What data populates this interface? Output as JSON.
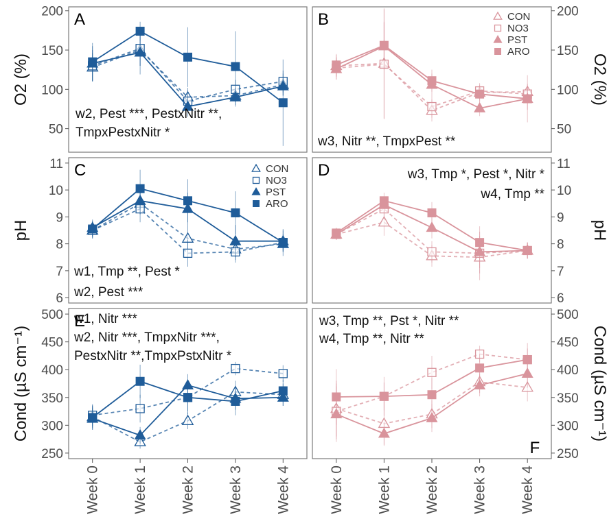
{
  "colors": {
    "blue": "#1f5c99",
    "pink": "#d9949c",
    "frame": "#7a7a7a"
  },
  "chart_data": [
    {
      "panel": "A",
      "type": "line",
      "ylabel": "O2 (%)",
      "axis_side": "left",
      "yticks": [
        50,
        100,
        150,
        200
      ],
      "ylim": [
        20,
        205
      ],
      "categories": [
        "Week 0",
        "Week 1",
        "Week 2",
        "Week 3",
        "Week 4"
      ],
      "annotations": [
        "w2, Pest ***, PestxNitr **,",
        "TmpxPestxNitr *"
      ],
      "legend": false,
      "series": [
        {
          "name": "CON",
          "values": [
            128,
            150,
            90,
            92,
            106
          ],
          "err": [
            18,
            20,
            12,
            12,
            14
          ]
        },
        {
          "name": "NO3",
          "values": [
            130,
            152,
            85,
            100,
            110
          ],
          "err": [
            20,
            22,
            14,
            12,
            14
          ]
        },
        {
          "name": "PST",
          "values": [
            133,
            147,
            78,
            90,
            104
          ],
          "err": [
            22,
            28,
            13,
            12,
            12
          ]
        },
        {
          "name": "ARO",
          "values": [
            135,
            174,
            141,
            129,
            83
          ],
          "err": [
            24,
            12,
            38,
            45,
            55
          ]
        }
      ]
    },
    {
      "panel": "B",
      "type": "line",
      "ylabel": "O2 (%)",
      "axis_side": "right",
      "yticks": [
        50,
        100,
        150,
        200
      ],
      "ylim": [
        20,
        205
      ],
      "categories": [
        "Week 0",
        "Week 1",
        "Week 2",
        "Week 3",
        "Week 4"
      ],
      "annotations": [
        "w3, Nitr **, TmpxPest **"
      ],
      "legend": true,
      "series": [
        {
          "name": "CON",
          "values": [
            130,
            133,
            73,
            96,
            97
          ],
          "err": [
            14,
            70,
            14,
            10,
            10
          ]
        },
        {
          "name": "NO3",
          "values": [
            127,
            132,
            78,
            98,
            94
          ],
          "err": [
            14,
            70,
            14,
            10,
            10
          ]
        },
        {
          "name": "PST",
          "values": [
            126,
            155,
            106,
            76,
            88
          ],
          "err": [
            14,
            30,
            14,
            10,
            14
          ]
        },
        {
          "name": "ARO",
          "values": [
            131,
            156,
            111,
            94,
            88
          ],
          "err": [
            14,
            30,
            14,
            10,
            30
          ]
        }
      ]
    },
    {
      "panel": "C",
      "type": "line",
      "ylabel": "pH",
      "axis_side": "left",
      "yticks": [
        6,
        7,
        8,
        9,
        10,
        11
      ],
      "ylim": [
        5.8,
        11.2
      ],
      "categories": [
        "Week 0",
        "Week 1",
        "Week 2",
        "Week 3",
        "Week 4"
      ],
      "annotations": [
        "w1, Tmp **, Pest *",
        "w2, Pest ***"
      ],
      "legend": true,
      "series": [
        {
          "name": "CON",
          "values": [
            8.5,
            9.5,
            8.2,
            7.8,
            8.0
          ],
          "err": [
            0.3,
            0.4,
            0.5,
            0.4,
            0.3
          ]
        },
        {
          "name": "NO3",
          "values": [
            8.5,
            9.3,
            7.65,
            7.7,
            8.05
          ],
          "err": [
            0.3,
            0.5,
            0.5,
            0.4,
            0.3
          ]
        },
        {
          "name": "PST",
          "values": [
            8.6,
            9.6,
            9.3,
            8.1,
            8.1
          ],
          "err": [
            0.3,
            0.5,
            0.6,
            0.6,
            0.4
          ]
        },
        {
          "name": "ARO",
          "values": [
            8.55,
            10.05,
            9.6,
            9.15,
            8.05
          ],
          "err": [
            0.3,
            0.7,
            0.8,
            0.8,
            0.5
          ]
        }
      ]
    },
    {
      "panel": "D",
      "type": "line",
      "ylabel": "pH",
      "axis_side": "right",
      "yticks": [
        6,
        7,
        8,
        9,
        10,
        11
      ],
      "ylim": [
        5.8,
        11.2
      ],
      "categories": [
        "Week 0",
        "Week 1",
        "Week 2",
        "Week 3",
        "Week 4"
      ],
      "annotations": [
        "w3, Tmp *, Pest *, Nitr *",
        "w4, Tmp **"
      ],
      "legend": false,
      "series": [
        {
          "name": "CON",
          "values": [
            8.35,
            8.8,
            7.55,
            7.5,
            7.75
          ],
          "err": [
            0.2,
            0.5,
            0.4,
            0.6,
            0.3
          ]
        },
        {
          "name": "NO3",
          "values": [
            8.35,
            9.3,
            7.7,
            7.65,
            7.75
          ],
          "err": [
            0.2,
            0.4,
            0.4,
            1.0,
            0.3
          ]
        },
        {
          "name": "PST",
          "values": [
            8.35,
            9.45,
            8.6,
            7.7,
            7.75
          ],
          "err": [
            0.2,
            0.3,
            0.4,
            0.6,
            0.3
          ]
        },
        {
          "name": "ARO",
          "values": [
            8.4,
            9.6,
            9.15,
            8.05,
            7.75
          ],
          "err": [
            0.2,
            0.3,
            0.4,
            0.4,
            0.3
          ]
        }
      ]
    },
    {
      "panel": "E",
      "type": "line",
      "ylabel": "Cond (µS cm⁻¹)",
      "axis_side": "left",
      "yticks": [
        250,
        300,
        350,
        400,
        450,
        500
      ],
      "ylim": [
        240,
        510
      ],
      "categories": [
        "Week 0",
        "Week 1",
        "Week 2",
        "Week 3",
        "Week 4"
      ],
      "annotations": [
        "w1, Nitr ***",
        "w2, Nitr ***, TmpxNitr ***,",
        "PestxNitr **,TmpxPstxNitr *"
      ],
      "legend": false,
      "series": [
        {
          "name": "CON",
          "values": [
            315,
            270,
            308,
            360,
            355
          ],
          "err": [
            20,
            12,
            15,
            20,
            20
          ]
        },
        {
          "name": "NO3",
          "values": [
            318,
            330,
            350,
            402,
            393
          ],
          "err": [
            20,
            25,
            25,
            12,
            15
          ]
        },
        {
          "name": "PST",
          "values": [
            312,
            282,
            372,
            348,
            350
          ],
          "err": [
            20,
            15,
            20,
            20,
            15
          ]
        },
        {
          "name": "ARO",
          "values": [
            314,
            379,
            350,
            343,
            362
          ],
          "err": [
            22,
            30,
            30,
            25,
            20
          ]
        }
      ]
    },
    {
      "panel": "F",
      "type": "line",
      "ylabel": "Cond (µS cm⁻¹)",
      "axis_side": "right",
      "yticks": [
        250,
        300,
        350,
        400,
        450,
        500
      ],
      "ylim": [
        240,
        510
      ],
      "categories": [
        "Week 0",
        "Week 1",
        "Week 2",
        "Week 3",
        "Week 4"
      ],
      "annotations": [
        "w3, Tmp **, Pst *, Nitr **",
        "w4, Tmp **, Nitr **"
      ],
      "legend": false,
      "series": [
        {
          "name": "CON",
          "values": [
            330,
            303,
            320,
            378,
            368
          ],
          "err": [
            50,
            40,
            25,
            20,
            25
          ]
        },
        {
          "name": "NO3",
          "values": [
            325,
            352,
            395,
            428,
            418
          ],
          "err": [
            50,
            35,
            30,
            15,
            20
          ]
        },
        {
          "name": "PST",
          "values": [
            320,
            285,
            313,
            372,
            393
          ],
          "err": [
            50,
            20,
            25,
            20,
            25
          ]
        },
        {
          "name": "ARO",
          "values": [
            351,
            352,
            355,
            403,
            418
          ],
          "err": [
            50,
            25,
            30,
            25,
            30
          ]
        }
      ]
    }
  ]
}
